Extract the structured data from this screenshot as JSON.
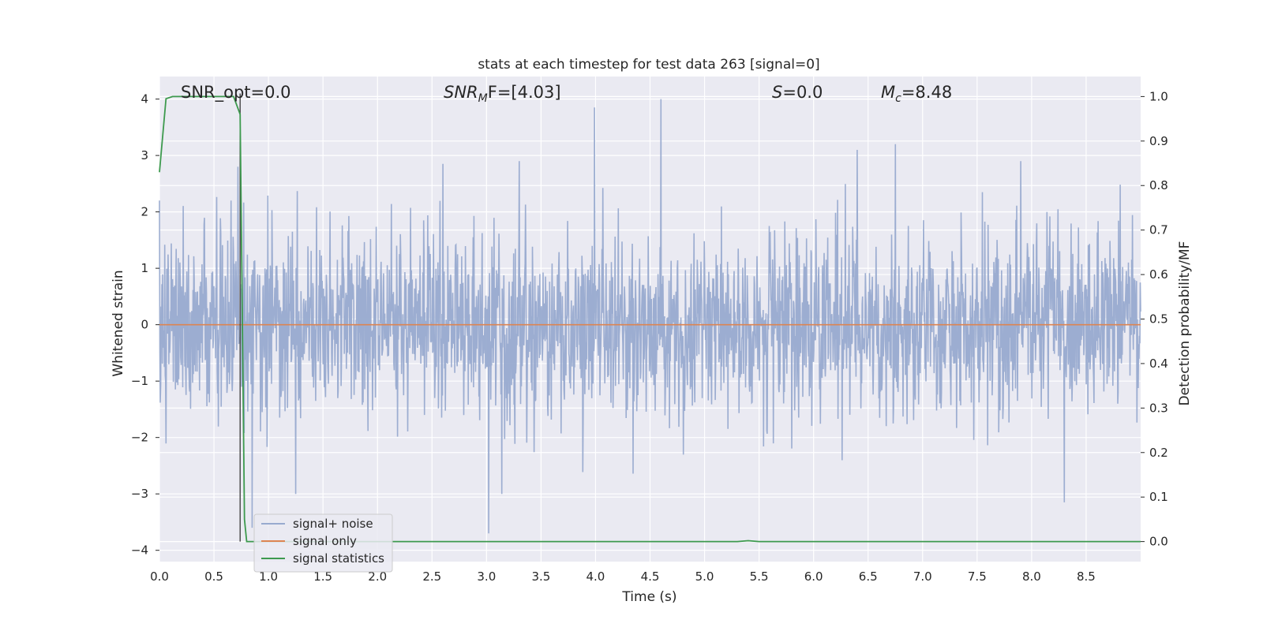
{
  "chart_data": {
    "type": "line",
    "title": "stats at each timestep for test data 263 [signal=0]",
    "xlabel": "Time (s)",
    "ylabel": "Whitened strain",
    "y2label": "Detection probability/MF",
    "xlim": [
      0.0,
      9.0
    ],
    "ylim": [
      -4.2,
      4.4
    ],
    "y2lim": [
      -0.045,
      1.045
    ],
    "xticks": [
      "0.0",
      "0.5",
      "1.0",
      "1.5",
      "2.0",
      "2.5",
      "3.0",
      "3.5",
      "4.0",
      "4.5",
      "5.0",
      "5.5",
      "6.0",
      "6.5",
      "7.0",
      "7.5",
      "8.0",
      "8.5"
    ],
    "yticks": [
      "4",
      "3",
      "2",
      "1",
      "0",
      "−1",
      "−2",
      "−3",
      "−4"
    ],
    "y2ticks": [
      "1.0",
      "0.9",
      "0.8",
      "0.7",
      "0.6",
      "0.5",
      "0.4",
      "0.3",
      "0.2",
      "0.1",
      "0.0"
    ],
    "grid": true,
    "legend_position": "lower-left",
    "annotations": {
      "snr_opt": "SNR_opt=0.0",
      "snr_mf_main": "SNR",
      "snr_mf_sub": "M",
      "snr_mf_rest": "F=[4.03]",
      "s_main": "S",
      "s_rest": "=0.0",
      "mc_main": "M",
      "mc_sub": "c",
      "mc_rest": "=8.48"
    },
    "vline_x": 0.74,
    "series": [
      {
        "name": "signal+ noise",
        "axis": "left",
        "color": "#98aacf",
        "description_values": "white noise, std ~0.75, peaks near 4.0 at t=4.6, 3.85 at t=3.99, 3.2 at t=6.75",
        "peaks": [
          [
            0.0,
            2.2
          ],
          [
            0.72,
            2.8
          ],
          [
            0.85,
            -3.6
          ],
          [
            1.25,
            -3.0
          ],
          [
            3.02,
            -3.7
          ],
          [
            3.99,
            3.85
          ],
          [
            4.6,
            4.0
          ],
          [
            6.75,
            3.2
          ],
          [
            6.4,
            3.1
          ],
          [
            8.3,
            -3.15
          ],
          [
            7.9,
            2.9
          ],
          [
            2.6,
            2.85
          ],
          [
            3.3,
            2.9
          ]
        ]
      },
      {
        "name": "signal only",
        "axis": "left",
        "color": "#dd8452",
        "x": [
          0.0,
          9.0
        ],
        "y": [
          0.0,
          0.0
        ]
      },
      {
        "name": "signal statistics",
        "axis": "right",
        "color": "#3d9a4e",
        "x": [
          0.0,
          0.06,
          0.12,
          0.5,
          0.68,
          0.74,
          0.76,
          0.78,
          0.8,
          0.85,
          5.3,
          5.4,
          5.5,
          9.0
        ],
        "y": [
          0.83,
          0.995,
          1.0,
          1.0,
          1.0,
          0.96,
          0.5,
          0.05,
          0.0,
          0.0,
          0.0,
          0.002,
          0.0,
          0.0
        ]
      }
    ]
  }
}
